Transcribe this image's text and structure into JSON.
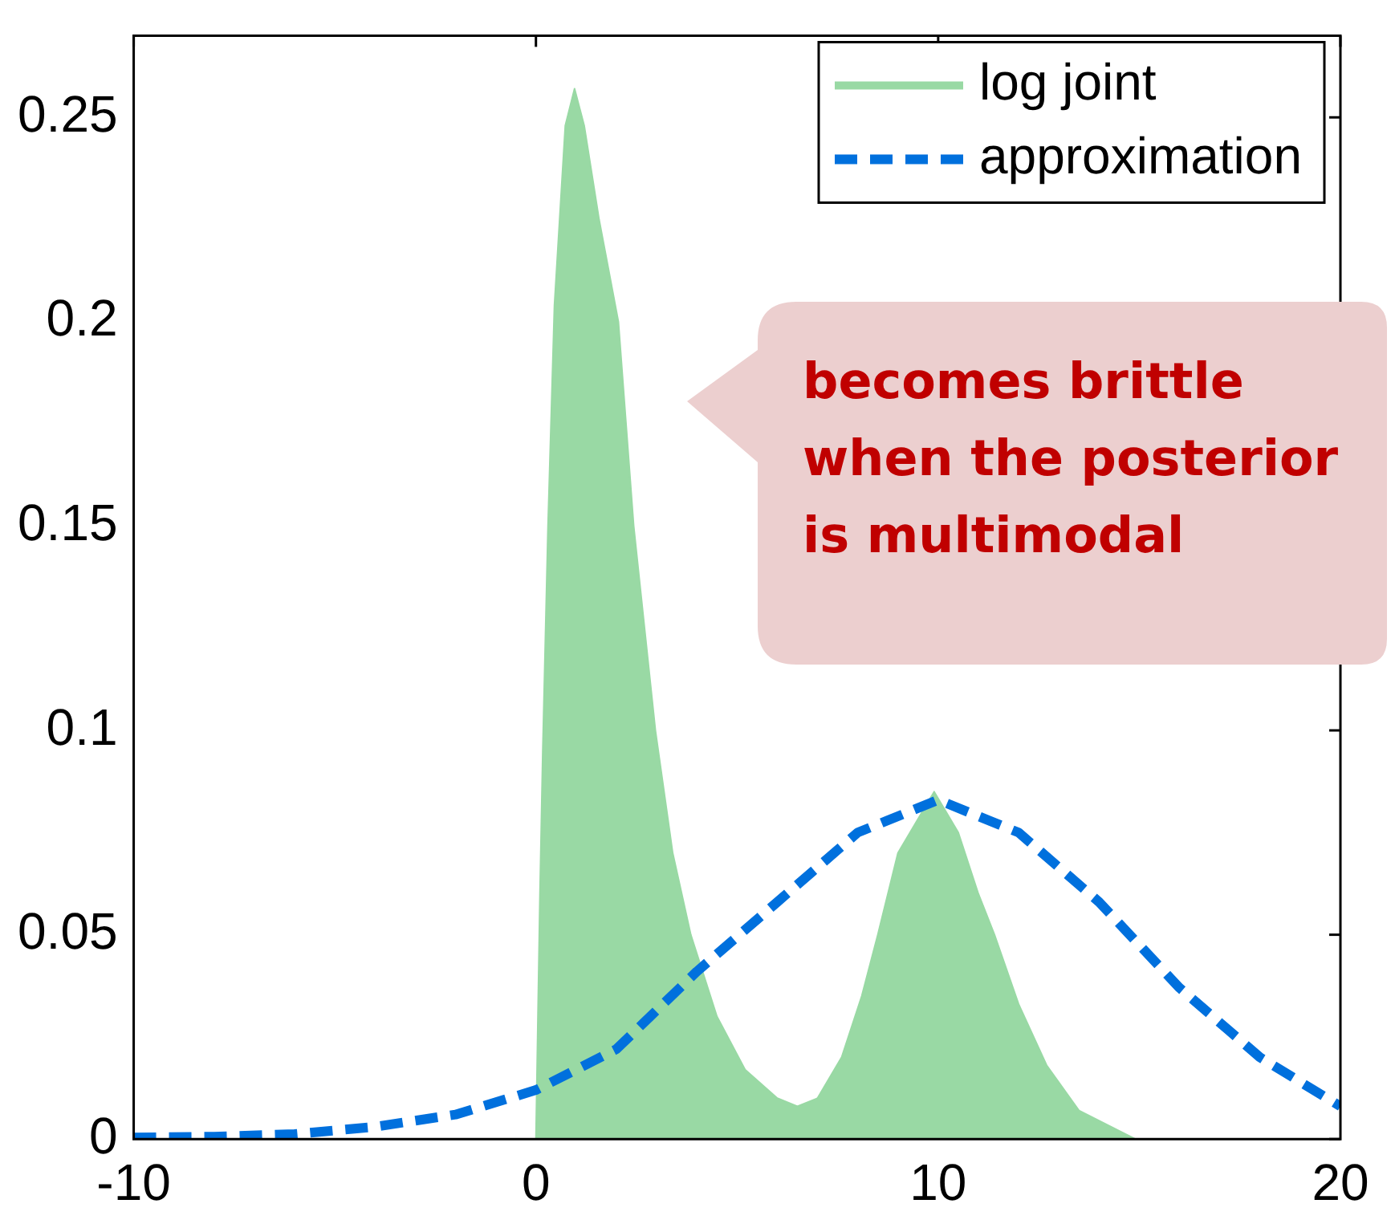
{
  "chart_data": {
    "type": "line",
    "xlim": [
      -10,
      20
    ],
    "xticks": [
      -10,
      0,
      10,
      20
    ],
    "ylim": [
      0,
      0.27
    ],
    "yticks": [
      0,
      0.05,
      0.1,
      0.15,
      0.2,
      0.25
    ],
    "grid": false,
    "legend": "top right",
    "marker": "none",
    "series": [
      {
        "name": "log joint",
        "type": "area",
        "color": "#99d9a4",
        "line_style": "solid",
        "x": [
          0,
          0.1,
          0.17,
          0.3,
          0.46,
          0.73,
          0.96,
          1.2,
          1.57,
          2.05,
          2.43,
          2.97,
          3.4,
          3.85,
          4.5,
          5.2,
          6,
          6.5,
          7,
          7.6,
          8.1,
          8.5,
          9,
          9.9,
          10.5,
          11,
          11.4,
          12,
          12.7,
          13.5,
          14.9,
          20
        ],
        "values": [
          0,
          0.06,
          0.095,
          0.15,
          0.204,
          0.248,
          0.257,
          0.248,
          0.225,
          0.2,
          0.15,
          0.1,
          0.07,
          0.05,
          0.03,
          0.017,
          0.01,
          0.008,
          0.01,
          0.02,
          0.035,
          0.05,
          0.07,
          0.085,
          0.075,
          0.06,
          0.05,
          0.033,
          0.018,
          0.007,
          0,
          0
        ]
      },
      {
        "name": "approximation",
        "type": "line",
        "color": "#0070dd",
        "line_style": "dashed",
        "x": [
          -10,
          -8,
          -6,
          -4,
          -2,
          0,
          2,
          4,
          6,
          8,
          10,
          12,
          14,
          16,
          18,
          20
        ],
        "values": [
          0.0004,
          0.0006,
          0.0012,
          0.003,
          0.006,
          0.012,
          0.022,
          0.041,
          0.058,
          0.075,
          0.083,
          0.075,
          0.058,
          0.037,
          0.02,
          0.008
        ]
      }
    ],
    "annotations": [
      "becomes brittle\nwhen the posterior\nis multimodal"
    ]
  }
}
